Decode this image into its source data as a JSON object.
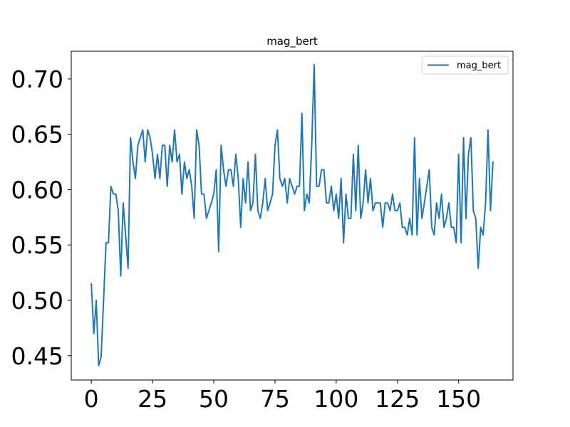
{
  "chart_data": {
    "type": "line",
    "title": "mag_bert",
    "xlabel": "",
    "ylabel": "",
    "xlim": [
      -8.2,
      172.2
    ],
    "ylim": [
      0.428,
      0.725
    ],
    "xticks": [
      0,
      25,
      50,
      75,
      100,
      125,
      150
    ],
    "yticks": [
      0.45,
      0.5,
      0.55,
      0.6,
      0.65,
      0.7
    ],
    "ytick_labels": [
      "0.45",
      "0.50",
      "0.55",
      "0.60",
      "0.65",
      "0.70"
    ],
    "grid": false,
    "legend_position": "top-right",
    "series": [
      {
        "name": "mag_bert",
        "color": "#1f77b4",
        "x_start": 0,
        "values": [
          0.515,
          0.47,
          0.5,
          0.441,
          0.449,
          0.5,
          0.552,
          0.552,
          0.603,
          0.596,
          0.596,
          0.581,
          0.522,
          0.588,
          0.559,
          0.529,
          0.647,
          0.625,
          0.61,
          0.64,
          0.647,
          0.654,
          0.625,
          0.654,
          0.647,
          0.632,
          0.61,
          0.632,
          0.61,
          0.64,
          0.64,
          0.603,
          0.64,
          0.625,
          0.654,
          0.625,
          0.632,
          0.596,
          0.625,
          0.61,
          0.618,
          0.603,
          0.574,
          0.654,
          0.64,
          0.596,
          0.596,
          0.574,
          0.581,
          0.588,
          0.596,
          0.618,
          0.544,
          0.64,
          0.618,
          0.603,
          0.618,
          0.618,
          0.603,
          0.632,
          0.61,
          0.566,
          0.61,
          0.588,
          0.625,
          0.581,
          0.588,
          0.632,
          0.581,
          0.574,
          0.588,
          0.61,
          0.581,
          0.588,
          0.596,
          0.64,
          0.654,
          0.61,
          0.603,
          0.61,
          0.588,
          0.61,
          0.603,
          0.596,
          0.603,
          0.603,
          0.669,
          0.581,
          0.596,
          0.588,
          0.64,
          0.713,
          0.603,
          0.603,
          0.618,
          0.618,
          0.588,
          0.588,
          0.603,
          0.581,
          0.596,
          0.574,
          0.61,
          0.552,
          0.596,
          0.574,
          0.574,
          0.632,
          0.581,
          0.64,
          0.574,
          0.588,
          0.618,
          0.588,
          0.61,
          0.581,
          0.588,
          0.588,
          0.588,
          0.566,
          0.588,
          0.588,
          0.581,
          0.596,
          0.581,
          0.581,
          0.588,
          0.566,
          0.566,
          0.559,
          0.574,
          0.559,
          0.647,
          0.559,
          0.61,
          0.574,
          0.588,
          0.603,
          0.618,
          0.566,
          0.559,
          0.588,
          0.574,
          0.596,
          0.566,
          0.574,
          0.588,
          0.566,
          0.566,
          0.552,
          0.632,
          0.552,
          0.647,
          0.574,
          0.632,
          0.647,
          0.581,
          0.574,
          0.529,
          0.566,
          0.559,
          0.588,
          0.654,
          0.581,
          0.625
        ]
      }
    ]
  }
}
